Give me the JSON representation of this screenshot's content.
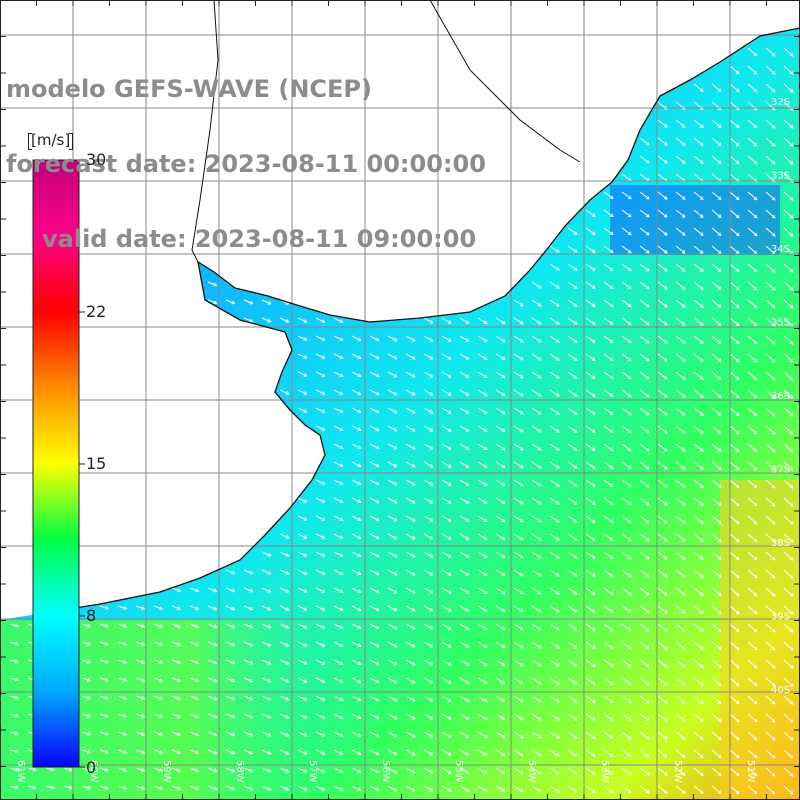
{
  "header": {
    "line1": "modelo GEFS-WAVE (NCEP)",
    "line2": "forecast date: 2023-08-11 00:00:00",
    "line3": "valid date: 2023-08-11 09:00:00"
  },
  "colorbar": {
    "unit": "[m/s]",
    "ticks": [
      "0",
      "8",
      "15",
      "22",
      "30"
    ],
    "range": [
      0,
      30
    ],
    "colors": [
      "#0a00ff",
      "#00aaff",
      "#00ffff",
      "#00ff44",
      "#ffff00",
      "#ff8c00",
      "#ff0000",
      "#ff0088",
      "#c0007a"
    ]
  },
  "axes": {
    "lat_labels": [
      "32S",
      "33S",
      "34S",
      "35S",
      "36S",
      "37S",
      "38S",
      "39S",
      "40S"
    ],
    "lon_labels": [
      "61W",
      "60W",
      "59W",
      "58W",
      "57W",
      "56W",
      "55W",
      "54W",
      "53W",
      "52W",
      "51W"
    ]
  },
  "map": {
    "variable": "wind speed",
    "arrow_color": "#ffffff",
    "grid_color": "#888888",
    "coast_color": "#111111",
    "land_color": "#ffffff"
  }
}
